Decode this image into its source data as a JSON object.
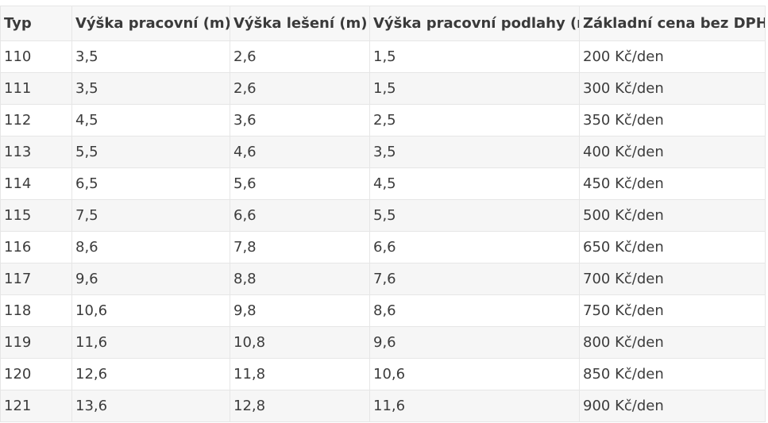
{
  "table": {
    "headers": [
      "Typ",
      "Výška pracovní (m)",
      "Výška lešení (m)",
      "Výška pracovní podlahy (m)",
      "Základní cena bez DPH"
    ],
    "rows": [
      [
        "110",
        "3,5",
        "2,6",
        "1,5",
        "200 Kč/den"
      ],
      [
        "111",
        "3,5",
        "2,6",
        "1,5",
        "300 Kč/den"
      ],
      [
        "112",
        "4,5",
        "3,6",
        "2,5",
        "350 Kč/den"
      ],
      [
        "113",
        "5,5",
        "4,6",
        "3,5",
        "400 Kč/den"
      ],
      [
        "114",
        "6,5",
        "5,6",
        "4,5",
        "450 Kč/den"
      ],
      [
        "115",
        "7,5",
        "6,6",
        "5,5",
        "500 Kč/den"
      ],
      [
        "116",
        "8,6",
        "7,8",
        "6,6",
        "650 Kč/den"
      ],
      [
        "117",
        "9,6",
        "8,8",
        "7,6",
        "700 Kč/den"
      ],
      [
        "118",
        "10,6",
        "9,8",
        "8,6",
        "750 Kč/den"
      ],
      [
        "119",
        "11,6",
        "10,8",
        "9,6",
        "800 Kč/den"
      ],
      [
        "120",
        "12,6",
        "11,8",
        "10,6",
        "850 Kč/den"
      ],
      [
        "121",
        "13,6",
        "12,8",
        "11,6",
        "900 Kč/den"
      ]
    ]
  }
}
